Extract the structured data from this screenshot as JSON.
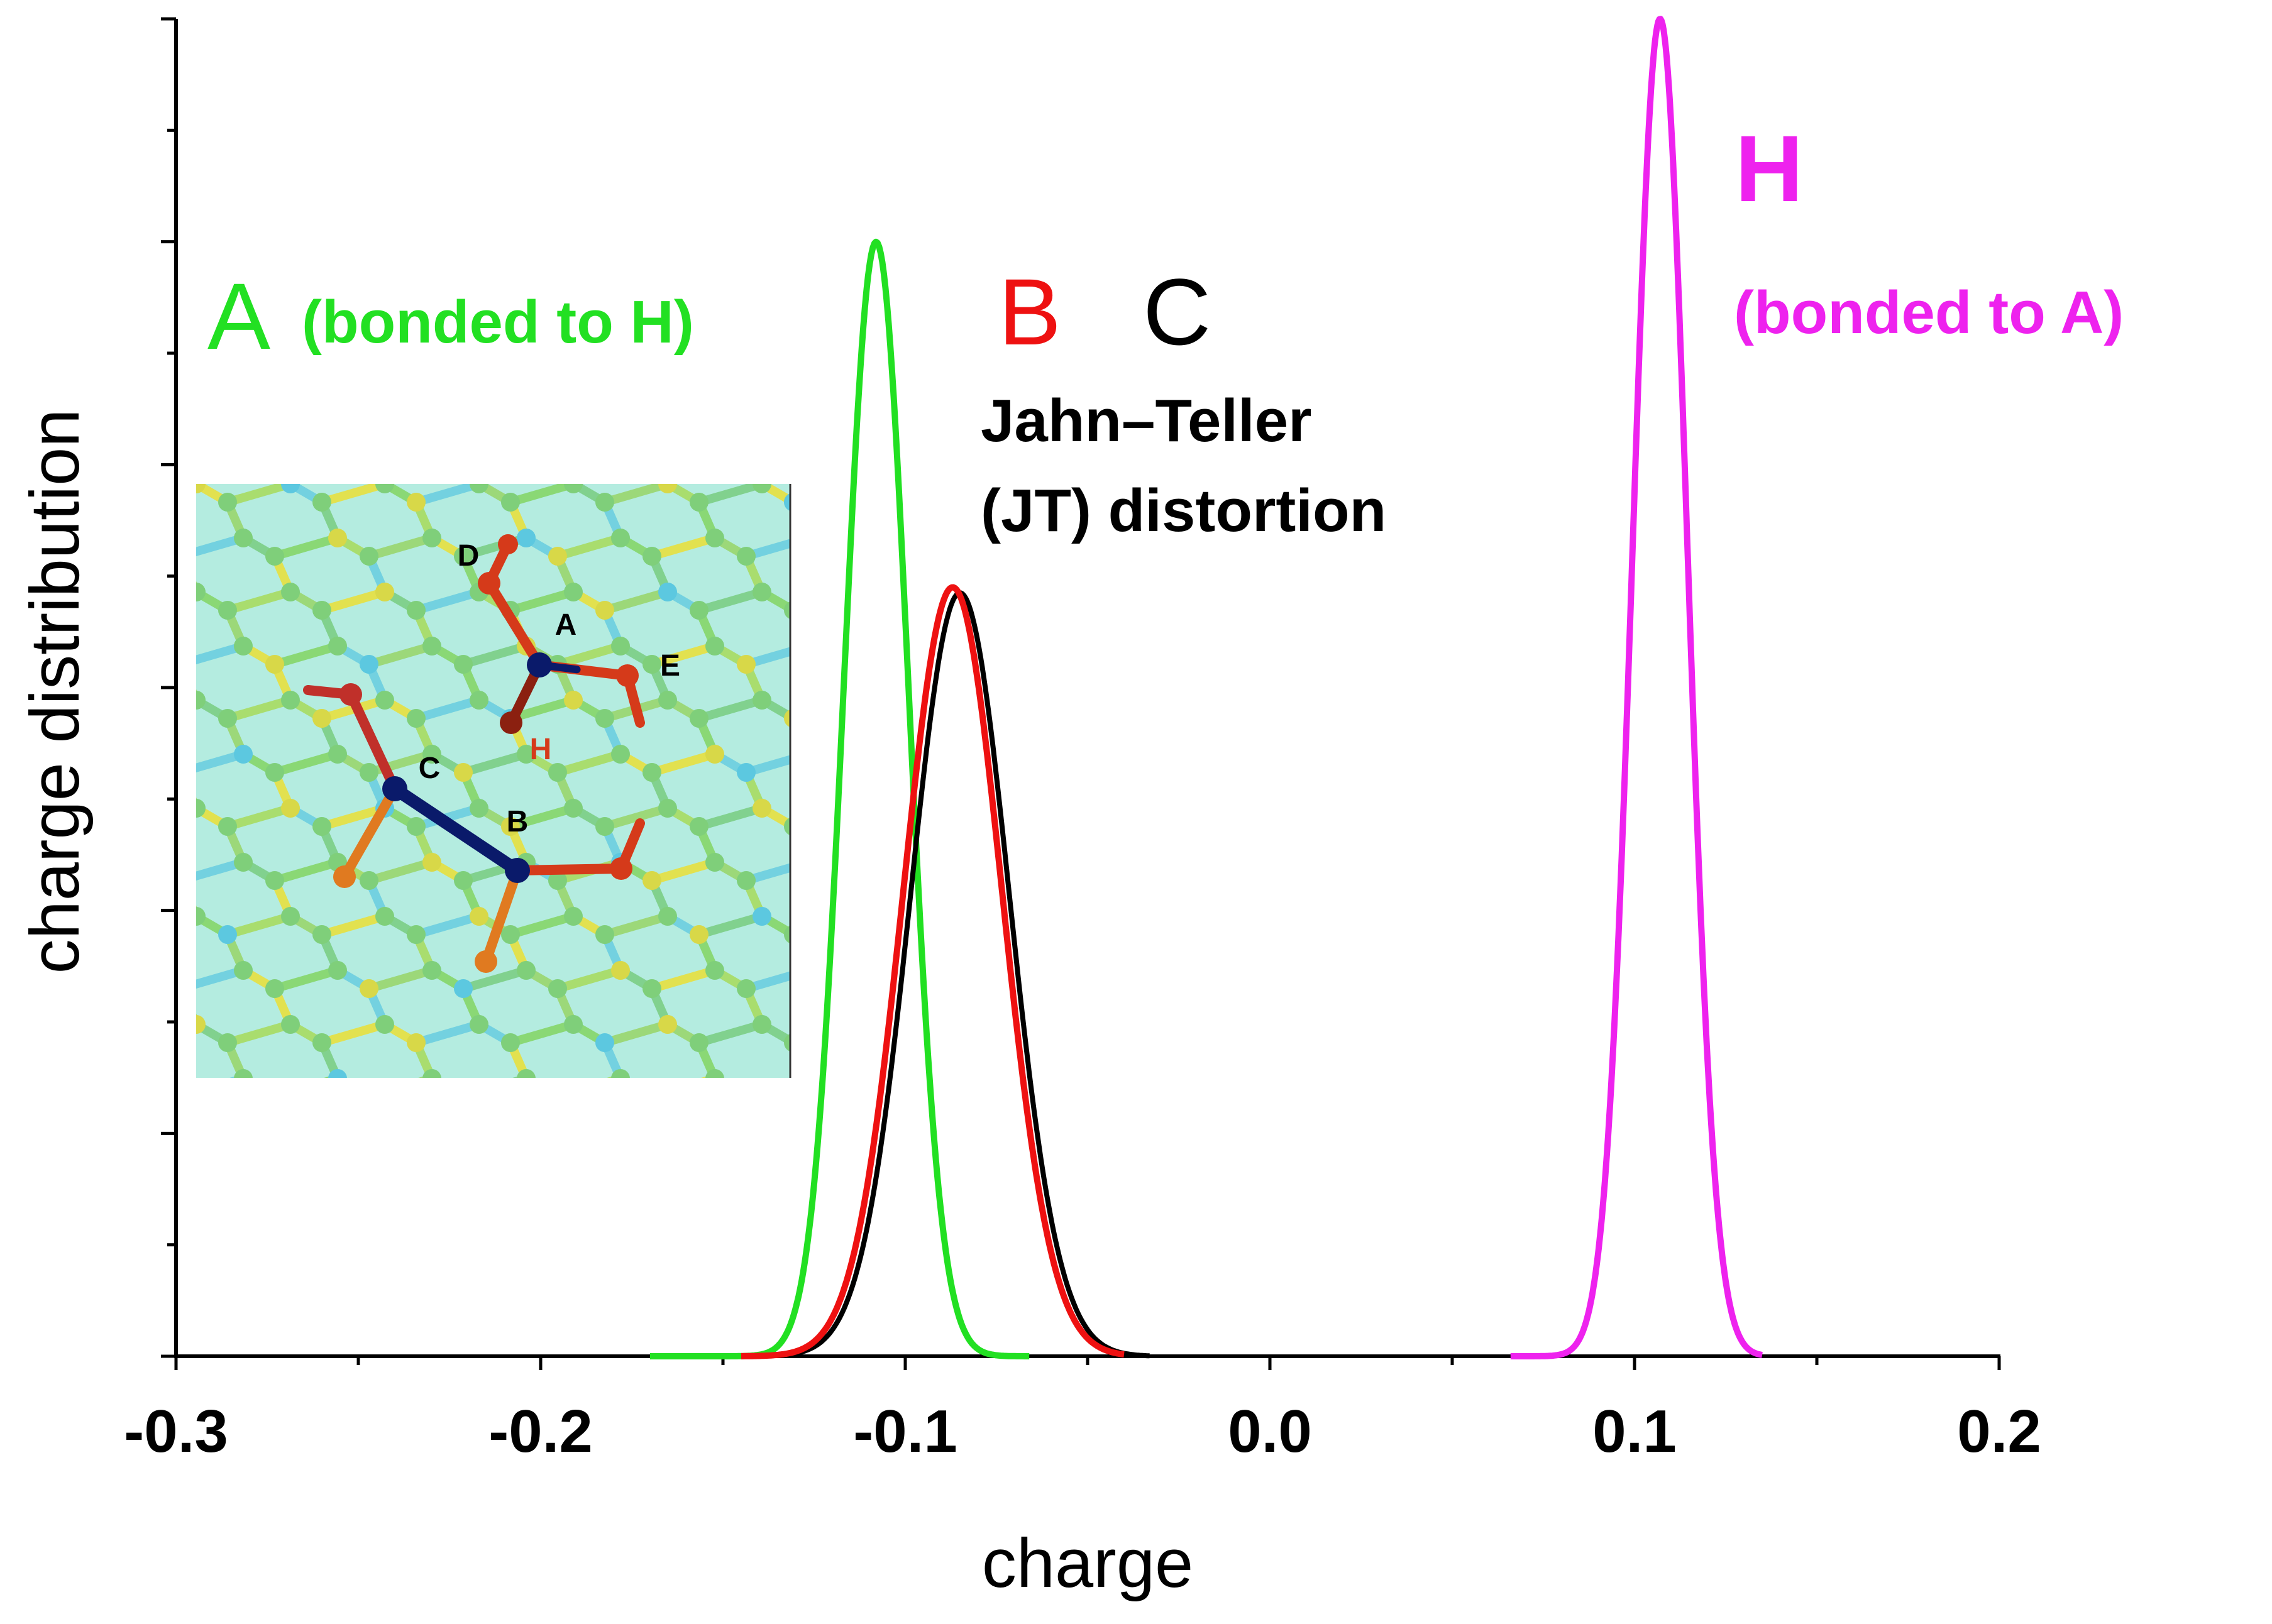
{
  "chart_data": {
    "type": "line",
    "title": "",
    "xlabel": "charge",
    "ylabel": "charge distribution",
    "xlim": [
      -0.3,
      0.2
    ],
    "ylim": [
      0,
      1.2
    ],
    "x_ticks": [
      "-0.3",
      "-0.2",
      "-0.1",
      "0.0",
      "0.1",
      "0.2"
    ],
    "series": [
      {
        "name": "A",
        "color": "#22e022",
        "center": -0.108,
        "sigma": 0.0088,
        "peak": 1.0,
        "range": [
          -0.17,
          -0.066
        ]
      },
      {
        "name": "B",
        "color": "#ee1111",
        "center": -0.087,
        "sigma": 0.0135,
        "peak": 0.69,
        "range": [
          -0.145,
          -0.04
        ]
      },
      {
        "name": "C",
        "color": "#000000",
        "center": -0.085,
        "sigma": 0.0135,
        "peak": 0.685,
        "range": [
          -0.14,
          -0.033
        ]
      },
      {
        "name": "H",
        "color": "#ee22ee",
        "center": 0.107,
        "sigma": 0.0075,
        "peak": 1.2,
        "range": [
          0.066,
          0.135
        ]
      }
    ],
    "annotations": {
      "a_letter": "A",
      "a_note": "(bonded to H)",
      "b_letter": "B",
      "c_letter": "C",
      "jt_line1": "Jahn–Teller",
      "jt_line2": "(JT) distortion",
      "h_letter": "H",
      "h_note": "(bonded to A)"
    },
    "inset": {
      "labels": {
        "A": "A",
        "B": "B",
        "C": "C",
        "D": "D",
        "E": "E",
        "H": "H"
      }
    }
  }
}
